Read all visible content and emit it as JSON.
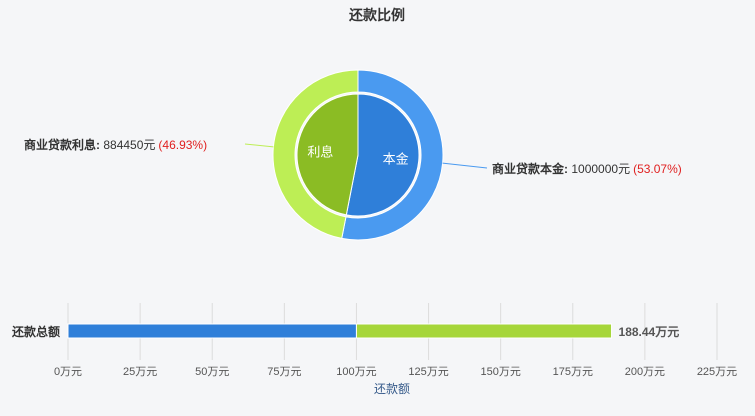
{
  "chart_data": [
    {
      "type": "pie",
      "title": "还款比例",
      "slices": [
        {
          "category": "本金",
          "name": "商业贷款本金",
          "value": 1000000,
          "value_text": "1000000元",
          "percent": 53.07,
          "percent_text": "(53.07%)",
          "outer_color": "#4a9af0",
          "inner_color": "#2f7fd9"
        },
        {
          "category": "利息",
          "name": "商业贷款利息",
          "value": 884450,
          "value_text": "884450元",
          "percent": 46.93,
          "percent_text": "(46.93%)",
          "outer_color": "#bdee55",
          "inner_color": "#8bbc24"
        }
      ]
    },
    {
      "type": "bar",
      "orientation": "horizontal",
      "stacked": true,
      "categories": [
        "还款总额"
      ],
      "series": [
        {
          "values": [
            100
          ],
          "color": "#2f7fd9"
        },
        {
          "values": [
            88.44
          ],
          "color": "#a6d63a"
        }
      ],
      "total_label": "188.44万元",
      "xlabel": "还款额",
      "xlim": [
        0,
        225
      ],
      "xticks": [
        0,
        25,
        50,
        75,
        100,
        125,
        150,
        175,
        200,
        225
      ],
      "xtick_labels": [
        "0万元",
        "25万元",
        "50万元",
        "75万元",
        "100万元",
        "125万元",
        "150万元",
        "175万元",
        "200万元",
        "225万元"
      ],
      "grid": true
    }
  ]
}
